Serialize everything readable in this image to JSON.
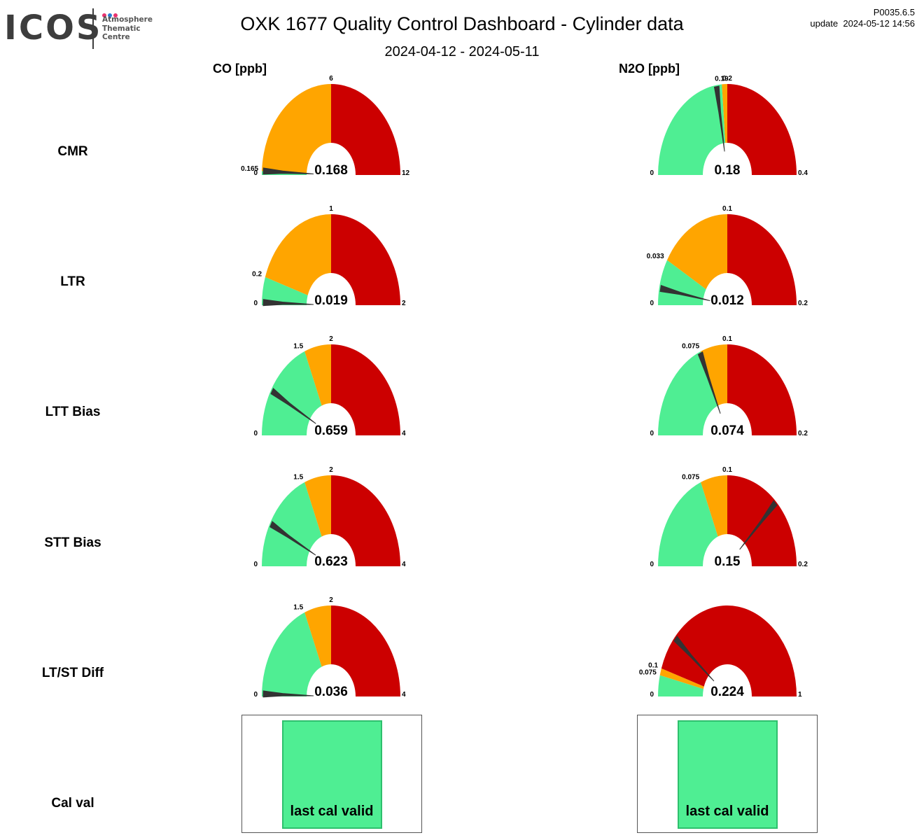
{
  "logo": {
    "word": "ICOS",
    "lines": [
      "Atmosphere",
      "Thematic",
      "Centre"
    ],
    "dot_colors": [
      "#e8336f",
      "#2a7dd4",
      "#e8336f"
    ],
    "text_color": "#3d3d3d"
  },
  "header": {
    "title": "OXK 1677 Quality Control Dashboard - Cylinder data",
    "subtitle": "2024-04-12 - 2024-05-11",
    "version": "P0035.6.5",
    "update": "update  2024-05-12 14:56"
  },
  "columns": [
    {
      "label": "CO [ppb]"
    },
    {
      "label": "N2O [ppb]"
    }
  ],
  "rows": [
    {
      "label": "CMR"
    },
    {
      "label": "LTR"
    },
    {
      "label": "LTT Bias"
    },
    {
      "label": "STT Bias"
    },
    {
      "label": "LT/ST Diff"
    },
    {
      "label": "Cal val"
    }
  ],
  "colors": {
    "good": "#4fee93",
    "warning": "#ffa500",
    "bad": "#cc0000",
    "needle": "#333333"
  },
  "chart_data": [
    {
      "type": "gauge",
      "row": "CMR",
      "column": "CO [ppb]",
      "min": 0,
      "max": 12,
      "bands": [
        {
          "from": 0,
          "to": 0.165,
          "color": "good"
        },
        {
          "from": 0.165,
          "to": 6,
          "color": "warning"
        },
        {
          "from": 6,
          "to": 12,
          "color": "bad"
        }
      ],
      "ticks": [
        {
          "value": 0,
          "label": "0"
        },
        {
          "value": 0.165,
          "label": "0.165"
        },
        {
          "value": 6,
          "label": "6"
        },
        {
          "value": 12,
          "label": "12"
        }
      ],
      "value": 0.168,
      "value_label": "0.168"
    },
    {
      "type": "gauge",
      "row": "CMR",
      "column": "N2O [ppb]",
      "min": 0,
      "max": 0.4,
      "bands": [
        {
          "from": 0,
          "to": 0.19,
          "color": "good"
        },
        {
          "from": 0.19,
          "to": 0.2,
          "color": "warning"
        },
        {
          "from": 0.2,
          "to": 0.4,
          "color": "bad"
        }
      ],
      "ticks": [
        {
          "value": 0,
          "label": "0"
        },
        {
          "value": 0.19,
          "label": "0.19"
        },
        {
          "value": 0.2,
          "label": "0.2"
        },
        {
          "value": 0.4,
          "label": "0.4"
        }
      ],
      "value": 0.18,
      "value_label": "0.18"
    },
    {
      "type": "gauge",
      "row": "LTR",
      "column": "CO [ppb]",
      "min": 0,
      "max": 2,
      "bands": [
        {
          "from": 0,
          "to": 0.2,
          "color": "good"
        },
        {
          "from": 0.2,
          "to": 1,
          "color": "warning"
        },
        {
          "from": 1,
          "to": 2,
          "color": "bad"
        }
      ],
      "ticks": [
        {
          "value": 0,
          "label": "0"
        },
        {
          "value": 0.2,
          "label": "0.2"
        },
        {
          "value": 1,
          "label": "1"
        },
        {
          "value": 2,
          "label": "2"
        }
      ],
      "value": 0.019,
      "value_label": "0.019"
    },
    {
      "type": "gauge",
      "row": "LTR",
      "column": "N2O [ppb]",
      "min": 0,
      "max": 0.2,
      "bands": [
        {
          "from": 0,
          "to": 0.033,
          "color": "good"
        },
        {
          "from": 0.033,
          "to": 0.1,
          "color": "warning"
        },
        {
          "from": 0.1,
          "to": 0.2,
          "color": "bad"
        }
      ],
      "ticks": [
        {
          "value": 0,
          "label": "0"
        },
        {
          "value": 0.033,
          "label": "0.033"
        },
        {
          "value": 0.1,
          "label": "0.1"
        },
        {
          "value": 0.2,
          "label": "0.2"
        }
      ],
      "value": 0.012,
      "value_label": "0.012"
    },
    {
      "type": "gauge",
      "row": "LTT Bias",
      "column": "CO [ppb]",
      "min": 0,
      "max": 4,
      "bands": [
        {
          "from": 0,
          "to": 1.5,
          "color": "good"
        },
        {
          "from": 1.5,
          "to": 2,
          "color": "warning"
        },
        {
          "from": 2,
          "to": 4,
          "color": "bad"
        }
      ],
      "ticks": [
        {
          "value": 0,
          "label": "0"
        },
        {
          "value": 1.5,
          "label": "1.5"
        },
        {
          "value": 2,
          "label": "2"
        },
        {
          "value": 4,
          "label": "4"
        }
      ],
      "value": 0.659,
      "value_label": "0.659"
    },
    {
      "type": "gauge",
      "row": "LTT Bias",
      "column": "N2O [ppb]",
      "min": 0,
      "max": 0.2,
      "bands": [
        {
          "from": 0,
          "to": 0.075,
          "color": "good"
        },
        {
          "from": 0.075,
          "to": 0.1,
          "color": "warning"
        },
        {
          "from": 0.1,
          "to": 0.2,
          "color": "bad"
        }
      ],
      "ticks": [
        {
          "value": 0,
          "label": "0"
        },
        {
          "value": 0.075,
          "label": "0.075"
        },
        {
          "value": 0.1,
          "label": "0.1"
        },
        {
          "value": 0.2,
          "label": "0.2"
        }
      ],
      "value": 0.074,
      "value_label": "0.074"
    },
    {
      "type": "gauge",
      "row": "STT Bias",
      "column": "CO [ppb]",
      "min": 0,
      "max": 4,
      "bands": [
        {
          "from": 0,
          "to": 1.5,
          "color": "good"
        },
        {
          "from": 1.5,
          "to": 2,
          "color": "warning"
        },
        {
          "from": 2,
          "to": 4,
          "color": "bad"
        }
      ],
      "ticks": [
        {
          "value": 0,
          "label": "0"
        },
        {
          "value": 1.5,
          "label": "1.5"
        },
        {
          "value": 2,
          "label": "2"
        },
        {
          "value": 4,
          "label": "4"
        }
      ],
      "value": 0.623,
      "value_label": "0.623"
    },
    {
      "type": "gauge",
      "row": "STT Bias",
      "column": "N2O [ppb]",
      "min": 0,
      "max": 0.2,
      "bands": [
        {
          "from": 0,
          "to": 0.075,
          "color": "good"
        },
        {
          "from": 0.075,
          "to": 0.1,
          "color": "warning"
        },
        {
          "from": 0.1,
          "to": 0.2,
          "color": "bad"
        }
      ],
      "ticks": [
        {
          "value": 0,
          "label": "0"
        },
        {
          "value": 0.075,
          "label": "0.075"
        },
        {
          "value": 0.1,
          "label": "0.1"
        },
        {
          "value": 0.2,
          "label": "0.2"
        }
      ],
      "value": 0.15,
      "value_label": "0.15"
    },
    {
      "type": "gauge",
      "row": "LT/ST Diff",
      "column": "CO [ppb]",
      "min": 0,
      "max": 4,
      "bands": [
        {
          "from": 0,
          "to": 1.5,
          "color": "good"
        },
        {
          "from": 1.5,
          "to": 2,
          "color": "warning"
        },
        {
          "from": 2,
          "to": 4,
          "color": "bad"
        }
      ],
      "ticks": [
        {
          "value": 0,
          "label": "0"
        },
        {
          "value": 1.5,
          "label": "1.5"
        },
        {
          "value": 2,
          "label": "2"
        },
        {
          "value": 4,
          "label": "4"
        }
      ],
      "value": 0.036,
      "value_label": "0.036"
    },
    {
      "type": "gauge",
      "row": "LT/ST Diff",
      "column": "N2O [ppb]",
      "min": 0,
      "max": 1,
      "bands": [
        {
          "from": 0,
          "to": 0.075,
          "color": "good"
        },
        {
          "from": 0.075,
          "to": 0.1,
          "color": "warning"
        },
        {
          "from": 0.1,
          "to": 1,
          "color": "bad"
        }
      ],
      "ticks": [
        {
          "value": 0,
          "label": "0"
        },
        {
          "value": 0.075,
          "label": "0.075"
        },
        {
          "value": 0.1,
          "label": "0.1"
        },
        {
          "value": 1,
          "label": "1"
        }
      ],
      "value": 0.224,
      "value_label": "0.224"
    }
  ],
  "cal_val": [
    {
      "column": "CO [ppb]",
      "status": "last cal valid",
      "color": "good"
    },
    {
      "column": "N2O [ppb]",
      "status": "last cal valid",
      "color": "good"
    }
  ]
}
